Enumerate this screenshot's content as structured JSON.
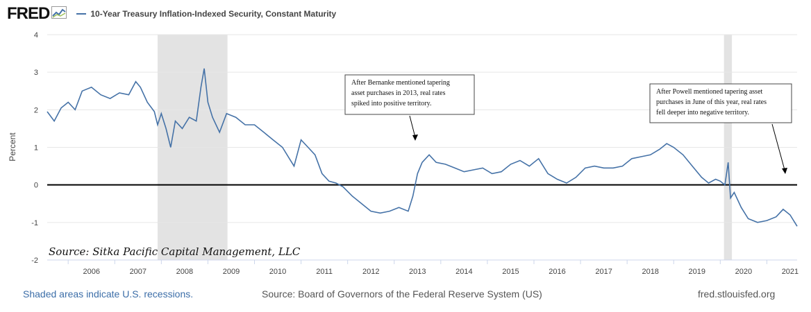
{
  "brand": {
    "logo_text": "FRED",
    "logo_icon": "fred-graph-icon"
  },
  "series_label": "10-Year Treasury Inflation-Indexed Security, Constant Maturity",
  "colors": {
    "line": "#4572a7",
    "recession": "#e3e3e3",
    "zero_line": "#000000",
    "grid": "#e6e6e6"
  },
  "chart_data": {
    "type": "line",
    "title": "10-Year Treasury Inflation-Indexed Security, Constant Maturity",
    "ylabel": "Percent",
    "xlabel": "",
    "ylim": [
      -2,
      4
    ],
    "xlim": [
      2005.55,
      2021.65
    ],
    "yticks": [
      -2,
      -1,
      0,
      1,
      2,
      3,
      4
    ],
    "xticks": [
      "2006",
      "2007",
      "2008",
      "2009",
      "2010",
      "2011",
      "2012",
      "2013",
      "2014",
      "2015",
      "2016",
      "2017",
      "2018",
      "2019",
      "2020",
      "2021"
    ],
    "grid": true,
    "recessions": [
      [
        2007.92,
        2009.42
      ],
      [
        2020.08,
        2020.25
      ]
    ],
    "series": [
      {
        "name": "10-Year Treasury Inflation-Indexed Security, Constant Maturity",
        "x": [
          2005.55,
          2005.7,
          2005.85,
          2006.0,
          2006.15,
          2006.3,
          2006.5,
          2006.7,
          2006.9,
          2007.1,
          2007.3,
          2007.45,
          2007.55,
          2007.7,
          2007.85,
          2007.92,
          2008.0,
          2008.1,
          2008.2,
          2008.3,
          2008.45,
          2008.6,
          2008.75,
          2008.85,
          2008.92,
          2009.0,
          2009.1,
          2009.25,
          2009.4,
          2009.6,
          2009.8,
          2010.0,
          2010.2,
          2010.4,
          2010.6,
          2010.75,
          2010.85,
          2011.0,
          2011.15,
          2011.3,
          2011.45,
          2011.6,
          2011.75,
          2011.9,
          2012.1,
          2012.3,
          2012.5,
          2012.7,
          2012.9,
          2013.1,
          2013.3,
          2013.4,
          2013.5,
          2013.6,
          2013.75,
          2013.9,
          2014.1,
          2014.3,
          2014.5,
          2014.7,
          2014.9,
          2015.1,
          2015.3,
          2015.5,
          2015.7,
          2015.9,
          2016.1,
          2016.3,
          2016.5,
          2016.7,
          2016.9,
          2017.1,
          2017.3,
          2017.5,
          2017.7,
          2017.9,
          2018.1,
          2018.3,
          2018.5,
          2018.7,
          2018.85,
          2019.0,
          2019.2,
          2019.4,
          2019.6,
          2019.75,
          2019.9,
          2020.0,
          2020.1,
          2020.17,
          2020.22,
          2020.3,
          2020.45,
          2020.6,
          2020.8,
          2021.0,
          2021.2,
          2021.35,
          2021.5,
          2021.65
        ],
        "values": [
          1.95,
          1.7,
          2.05,
          2.2,
          2.0,
          2.5,
          2.6,
          2.4,
          2.3,
          2.45,
          2.4,
          2.75,
          2.6,
          2.2,
          1.95,
          1.6,
          1.9,
          1.5,
          1.0,
          1.7,
          1.5,
          1.8,
          1.7,
          2.6,
          3.1,
          2.2,
          1.8,
          1.4,
          1.9,
          1.8,
          1.6,
          1.6,
          1.4,
          1.2,
          1.0,
          0.7,
          0.5,
          1.2,
          1.0,
          0.8,
          0.3,
          0.1,
          0.05,
          -0.05,
          -0.3,
          -0.5,
          -0.7,
          -0.75,
          -0.7,
          -0.6,
          -0.7,
          -0.3,
          0.3,
          0.6,
          0.8,
          0.6,
          0.55,
          0.45,
          0.35,
          0.4,
          0.45,
          0.3,
          0.35,
          0.55,
          0.65,
          0.5,
          0.7,
          0.3,
          0.15,
          0.05,
          0.2,
          0.45,
          0.5,
          0.45,
          0.45,
          0.5,
          0.7,
          0.75,
          0.8,
          0.95,
          1.1,
          1.0,
          0.8,
          0.5,
          0.2,
          0.05,
          0.15,
          0.1,
          0.0,
          0.6,
          -0.35,
          -0.2,
          -0.6,
          -0.9,
          -1.0,
          -0.95,
          -0.85,
          -0.65,
          -0.8,
          -1.1
        ]
      }
    ],
    "annotations": [
      {
        "lines": [
          "After Bernanke mentioned tapering",
          "asset purchases in 2013, real rates",
          "spiked into positive territory."
        ]
      },
      {
        "lines": [
          "After Powell mentioned tapering asset",
          "purchases in June of this year, real rates",
          "fell deeper into negative territory."
        ]
      }
    ],
    "overlay_source": "Source: Sitka Pacific Capital Management, LLC"
  },
  "footer": {
    "recession_note": "Shaded areas indicate U.S. recessions.",
    "source": "Source: Board of Governors of the Federal Reserve System (US)",
    "site": "fred.stlouisfed.org"
  }
}
